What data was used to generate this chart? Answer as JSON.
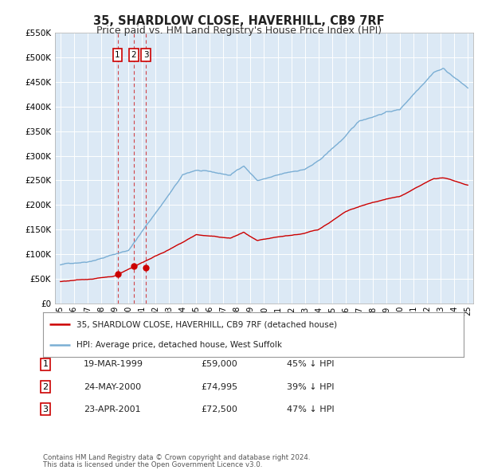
{
  "title": "35, SHARDLOW CLOSE, HAVERHILL, CB9 7RF",
  "subtitle": "Price paid vs. HM Land Registry's House Price Index (HPI)",
  "title_fontsize": 10.5,
  "subtitle_fontsize": 9,
  "background_color": "#ffffff",
  "plot_bg_color": "#dce9f5",
  "ylim": [
    0,
    550000
  ],
  "yticks": [
    0,
    50000,
    100000,
    150000,
    200000,
    250000,
    300000,
    350000,
    400000,
    450000,
    500000,
    550000
  ],
  "ytick_labels": [
    "£0",
    "£50K",
    "£100K",
    "£150K",
    "£200K",
    "£250K",
    "£300K",
    "£350K",
    "£400K",
    "£450K",
    "£500K",
    "£550K"
  ],
  "xlim_start": 1994.6,
  "xlim_end": 2025.4,
  "grid_color": "#ffffff",
  "transactions": [
    {
      "num": 1,
      "date_x": 1999.21,
      "price": 59000,
      "label": "1",
      "date_str": "19-MAR-1999",
      "price_str": "£59,000",
      "pct_str": "45% ↓ HPI"
    },
    {
      "num": 2,
      "date_x": 2000.39,
      "price": 74995,
      "label": "2",
      "date_str": "24-MAY-2000",
      "price_str": "£74,995",
      "pct_str": "39% ↓ HPI"
    },
    {
      "num": 3,
      "date_x": 2001.31,
      "price": 72500,
      "label": "3",
      "date_str": "23-APR-2001",
      "price_str": "£72,500",
      "pct_str": "47% ↓ HPI"
    }
  ],
  "legend_line1": "35, SHARDLOW CLOSE, HAVERHILL, CB9 7RF (detached house)",
  "legend_line2": "HPI: Average price, detached house, West Suffolk",
  "footer1": "Contains HM Land Registry data © Crown copyright and database right 2024.",
  "footer2": "This data is licensed under the Open Government Licence v3.0.",
  "red_color": "#cc0000",
  "blue_color": "#7aaed4"
}
